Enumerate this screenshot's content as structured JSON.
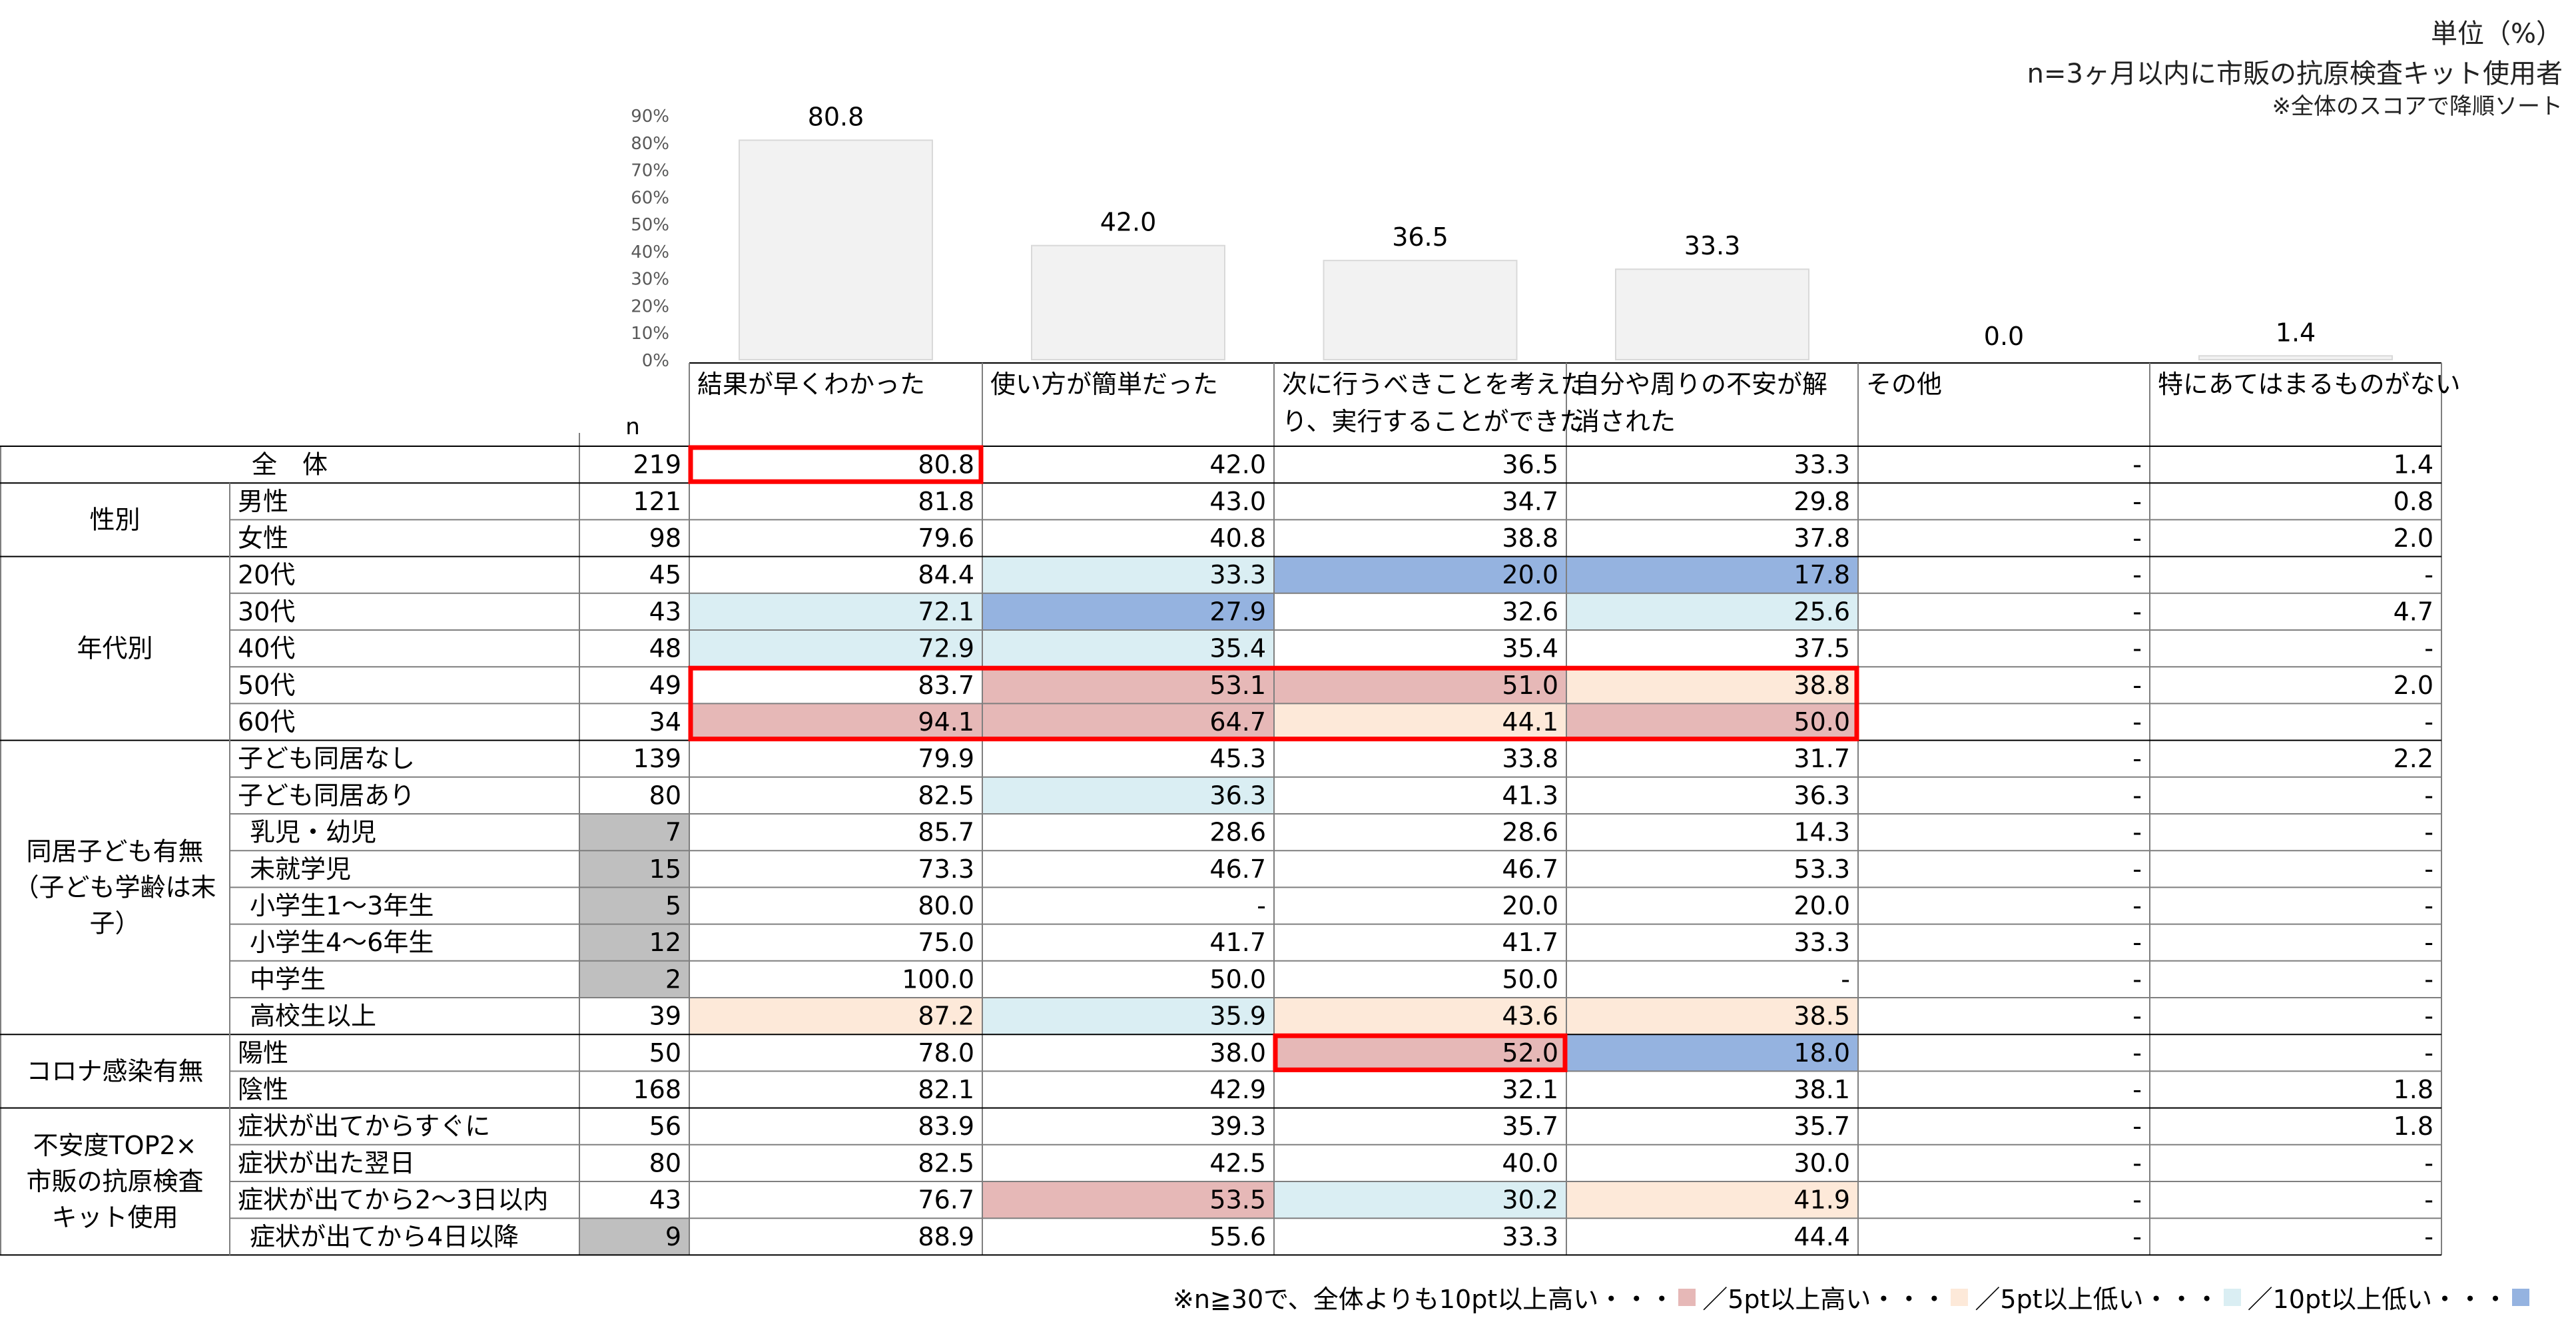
{
  "header": {
    "unit": "単位（%）",
    "n_line": "n=3ヶ月以内に市販の抗原検査キット使用者",
    "sort_note": "※全体のスコアで降順ソート"
  },
  "legend": {
    "lead": "※n≧30で、全体よりも10pt以上高い・・・",
    "item2": "／5pt以上高い・・・",
    "item3": "／5pt以上低い・・・",
    "item4": "／10pt以上低い・・・",
    "colors": {
      "high10": "#e6b8b7",
      "high5": "#fde9d9",
      "low5": "#daeef3",
      "low10": "#95b3e0"
    }
  },
  "chart_data": {
    "type": "bar",
    "ylim": [
      0,
      90
    ],
    "yticks": [
      "0%",
      "10%",
      "20%",
      "30%",
      "40%",
      "50%",
      "60%",
      "70%",
      "80%",
      "90%"
    ],
    "categories": [
      "結果が早くわかった",
      "使い方が簡単だった",
      "次に行うべきことを考えたり、実行することができた",
      "自分や周りの不安が解消された",
      "その他",
      "特にあてはまるものがない"
    ],
    "values": [
      80.8,
      42.0,
      36.5,
      33.3,
      0.0,
      1.4
    ],
    "value_labels": [
      "80.8",
      "42.0",
      "36.5",
      "33.3",
      "0.0",
      "1.4"
    ]
  },
  "table": {
    "n_header": "n",
    "column_headers": [
      [
        "結果が早くわかった"
      ],
      [
        "使い方が簡単だった"
      ],
      [
        "次に行うべきことを考えた",
        "り、実行することができた"
      ],
      [
        "自分や周りの不安が解",
        "消された"
      ],
      [
        "その他"
      ],
      [
        "特にあてはまるものがない"
      ]
    ],
    "total": {
      "label": "全　体",
      "n": "219",
      "values": [
        "80.8",
        "42.0",
        "36.5",
        "33.3",
        "-",
        "1.4"
      ]
    },
    "groups": [
      {
        "label": [
          "性別"
        ],
        "rows": [
          {
            "label": "男性",
            "n": "121",
            "values": [
              "81.8",
              "43.0",
              "34.7",
              "29.8",
              "-",
              "0.8"
            ],
            "cells": [
              "",
              "",
              "",
              "",
              "",
              ""
            ]
          },
          {
            "label": "女性",
            "n": "98",
            "values": [
              "79.6",
              "40.8",
              "38.8",
              "37.8",
              "-",
              "2.0"
            ],
            "cells": [
              "",
              "",
              "",
              "",
              "",
              ""
            ]
          }
        ]
      },
      {
        "label": [
          "年代別"
        ],
        "rows": [
          {
            "label": "20代",
            "n": "45",
            "values": [
              "84.4",
              "33.3",
              "20.0",
              "17.8",
              "-",
              "-"
            ],
            "cells": [
              "",
              "low5",
              "low10",
              "low10",
              "",
              ""
            ]
          },
          {
            "label": "30代",
            "n": "43",
            "values": [
              "72.1",
              "27.9",
              "32.6",
              "25.6",
              "-",
              "4.7"
            ],
            "cells": [
              "low5",
              "low10",
              "",
              "low5",
              "",
              ""
            ]
          },
          {
            "label": "40代",
            "n": "48",
            "values": [
              "72.9",
              "35.4",
              "35.4",
              "37.5",
              "-",
              "-"
            ],
            "cells": [
              "low5",
              "low5",
              "",
              "",
              "",
              ""
            ]
          },
          {
            "label": "50代",
            "n": "49",
            "values": [
              "83.7",
              "53.1",
              "51.0",
              "38.8",
              "-",
              "2.0"
            ],
            "cells": [
              "",
              "high10",
              "high10",
              "high5",
              "",
              ""
            ]
          },
          {
            "label": "60代",
            "n": "34",
            "values": [
              "94.1",
              "64.7",
              "44.1",
              "50.0",
              "-",
              "-"
            ],
            "cells": [
              "high10",
              "high10",
              "high5",
              "high10",
              "",
              ""
            ]
          }
        ]
      },
      {
        "label": [
          "同居子ども有無",
          "（子ども学齢は末",
          "子）"
        ],
        "rows": [
          {
            "label": "子ども同居なし",
            "n": "139",
            "values": [
              "79.9",
              "45.3",
              "33.8",
              "31.7",
              "-",
              "2.2"
            ],
            "cells": [
              "",
              "",
              "",
              "",
              "",
              ""
            ]
          },
          {
            "label": "子ども同居あり",
            "n": "80",
            "values": [
              "82.5",
              "36.3",
              "41.3",
              "36.3",
              "-",
              "-"
            ],
            "cells": [
              "",
              "low5",
              "",
              "",
              "",
              ""
            ]
          },
          {
            "label": "乳児・幼児",
            "n": "7",
            "small": true,
            "values": [
              "85.7",
              "28.6",
              "28.6",
              "14.3",
              "-",
              "-"
            ],
            "cells": [
              "",
              "",
              "",
              "",
              "",
              ""
            ]
          },
          {
            "label": "未就学児",
            "n": "15",
            "small": true,
            "values": [
              "73.3",
              "46.7",
              "46.7",
              "53.3",
              "-",
              "-"
            ],
            "cells": [
              "",
              "",
              "",
              "",
              "",
              ""
            ]
          },
          {
            "label": "小学生1～3年生",
            "n": "5",
            "small": true,
            "values": [
              "80.0",
              "-",
              "20.0",
              "20.0",
              "-",
              "-"
            ],
            "cells": [
              "",
              "",
              "",
              "",
              "",
              ""
            ]
          },
          {
            "label": "小学生4～6年生",
            "n": "12",
            "small": true,
            "values": [
              "75.0",
              "41.7",
              "41.7",
              "33.3",
              "-",
              "-"
            ],
            "cells": [
              "",
              "",
              "",
              "",
              "",
              ""
            ]
          },
          {
            "label": "中学生",
            "n": "2",
            "small": true,
            "values": [
              "100.0",
              "50.0",
              "50.0",
              "-",
              "-",
              "-"
            ],
            "cells": [
              "",
              "",
              "",
              "",
              "",
              ""
            ]
          },
          {
            "label": "高校生以上",
            "n": "39",
            "values": [
              "87.2",
              "35.9",
              "43.6",
              "38.5",
              "-",
              "-"
            ],
            "cells": [
              "high5",
              "low5",
              "high5",
              "high5",
              "",
              ""
            ]
          }
        ]
      },
      {
        "label": [
          "コロナ感染有無"
        ],
        "rows": [
          {
            "label": "陽性",
            "n": "50",
            "values": [
              "78.0",
              "38.0",
              "52.0",
              "18.0",
              "-",
              "-"
            ],
            "cells": [
              "",
              "",
              "high10",
              "low10",
              "",
              ""
            ]
          },
          {
            "label": "陰性",
            "n": "168",
            "values": [
              "82.1",
              "42.9",
              "32.1",
              "38.1",
              "-",
              "1.8"
            ],
            "cells": [
              "",
              "",
              "",
              "",
              "",
              ""
            ]
          }
        ]
      },
      {
        "label": [
          "不安度TOP2×",
          "市販の抗原検査",
          "キット使用"
        ],
        "rows": [
          {
            "label": "症状が出てからすぐに",
            "n": "56",
            "values": [
              "83.9",
              "39.3",
              "35.7",
              "35.7",
              "-",
              "1.8"
            ],
            "cells": [
              "",
              "",
              "",
              "",
              "",
              ""
            ]
          },
          {
            "label": "症状が出た翌日",
            "n": "80",
            "values": [
              "82.5",
              "42.5",
              "40.0",
              "30.0",
              "-",
              "-"
            ],
            "cells": [
              "",
              "",
              "",
              "",
              "",
              ""
            ]
          },
          {
            "label": "症状が出てから2～3日以内",
            "n": "43",
            "values": [
              "76.7",
              "53.5",
              "30.2",
              "41.9",
              "-",
              "-"
            ],
            "cells": [
              "",
              "high10",
              "low5",
              "high5",
              "",
              ""
            ]
          },
          {
            "label": "症状が出てから4日以降",
            "n": "9",
            "small": true,
            "values": [
              "88.9",
              "55.6",
              "33.3",
              "44.4",
              "-",
              "-"
            ],
            "cells": [
              "",
              "",
              "",
              "",
              "",
              ""
            ]
          }
        ]
      }
    ]
  }
}
